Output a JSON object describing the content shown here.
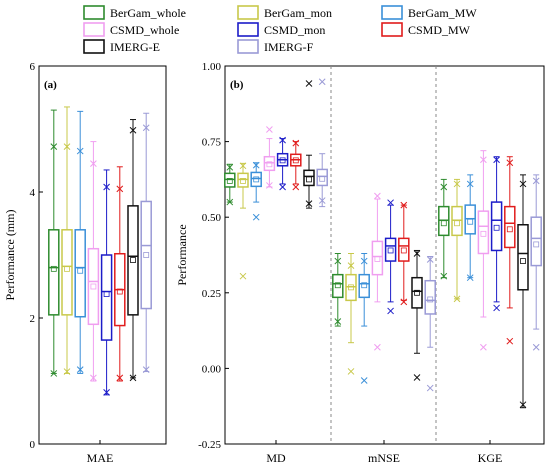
{
  "legend": [
    {
      "name": "BerGam_whole",
      "color": "#2e8b2e"
    },
    {
      "name": "BerGam_mon",
      "color": "#c8c84a"
    },
    {
      "name": "BerGam_MW",
      "color": "#3a8fd8"
    },
    {
      "name": "CSMD_whole",
      "color": "#f09ef0"
    },
    {
      "name": "CSMD_mon",
      "color": "#1c1cc8"
    },
    {
      "name": "CSMD_MW",
      "color": "#e01c1c"
    },
    {
      "name": "IMERG-E",
      "color": "#111111"
    },
    {
      "name": "IMERG-F",
      "color": "#9a9ad6"
    }
  ],
  "chart_data": [
    {
      "type": "box",
      "panel_label": "(a)",
      "ylabel": "Performance (mm)",
      "ylim": [
        0,
        6
      ],
      "yticks": [
        0,
        2,
        4,
        6
      ],
      "categories": [
        "MAE"
      ],
      "groups": [
        {
          "category": "MAE",
          "boxes": [
            {
              "series": "BerGam_whole",
              "wlo": 1.12,
              "q1": 2.05,
              "median": 2.8,
              "q3": 3.4,
              "whi": 5.3,
              "mean": 2.78,
              "xmin": 1.12,
              "xmax": 4.72
            },
            {
              "series": "BerGam_mon",
              "wlo": 1.12,
              "q1": 2.05,
              "median": 2.82,
              "q3": 3.4,
              "whi": 5.35,
              "mean": 2.78,
              "xmin": 1.15,
              "xmax": 4.72
            },
            {
              "series": "BerGam_MW",
              "wlo": 1.12,
              "q1": 2.02,
              "median": 2.8,
              "q3": 3.4,
              "whi": 5.28,
              "mean": 2.75,
              "xmin": 1.18,
              "xmax": 4.65
            },
            {
              "series": "CSMD_whole",
              "wlo": 1.0,
              "q1": 1.9,
              "median": 2.58,
              "q3": 3.1,
              "whi": 4.8,
              "mean": 2.5,
              "xmin": 1.05,
              "xmax": 4.45
            },
            {
              "series": "CSMD_mon",
              "wlo": 0.78,
              "q1": 1.65,
              "median": 2.42,
              "q3": 3.0,
              "whi": 4.35,
              "mean": 2.38,
              "xmin": 0.82,
              "xmax": 4.08
            },
            {
              "series": "CSMD_MW",
              "wlo": 1.0,
              "q1": 1.88,
              "median": 2.45,
              "q3": 3.02,
              "whi": 4.4,
              "mean": 2.42,
              "xmin": 1.05,
              "xmax": 4.05
            },
            {
              "series": "IMERG-E",
              "wlo": 1.05,
              "q1": 2.05,
              "median": 2.98,
              "q3": 3.78,
              "whi": 5.15,
              "mean": 2.92,
              "xmin": 1.05,
              "xmax": 4.98
            },
            {
              "series": "IMERG-F",
              "wlo": 1.15,
              "q1": 2.15,
              "median": 3.15,
              "q3": 3.85,
              "whi": 5.25,
              "mean": 3.0,
              "xmin": 1.18,
              "xmax": 5.02
            }
          ]
        }
      ]
    },
    {
      "type": "box",
      "panel_label": "(b)",
      "ylabel": "Performance",
      "ylim": [
        -0.25,
        1.0
      ],
      "yticks": [
        "-0.25",
        "0.00",
        "0.25",
        "0.50",
        "0.75",
        "1.00"
      ],
      "categories": [
        "MD",
        "mNSE",
        "KGE"
      ],
      "groups": [
        {
          "category": "MD",
          "boxes": [
            {
              "series": "BerGam_whole",
              "wlo": 0.55,
              "q1": 0.6,
              "median": 0.625,
              "q3": 0.645,
              "whi": 0.675,
              "mean": 0.62,
              "xmin": 0.55,
              "xmax": 0.665
            },
            {
              "series": "BerGam_mon",
              "wlo": 0.53,
              "q1": 0.6,
              "median": 0.625,
              "q3": 0.645,
              "whi": 0.678,
              "mean": 0.62,
              "xmin": 0.305,
              "xmax": 0.67
            },
            {
              "series": "BerGam_MW",
              "wlo": 0.55,
              "q1": 0.602,
              "median": 0.628,
              "q3": 0.648,
              "whi": 0.68,
              "mean": 0.625,
              "xmin": 0.5,
              "xmax": 0.672
            },
            {
              "series": "CSMD_whole",
              "wlo": 0.6,
              "q1": 0.655,
              "median": 0.68,
              "q3": 0.7,
              "whi": 0.76,
              "mean": 0.675,
              "xmin": 0.605,
              "xmax": 0.79
            },
            {
              "series": "CSMD_mon",
              "wlo": 0.61,
              "q1": 0.67,
              "median": 0.69,
              "q3": 0.71,
              "whi": 0.76,
              "mean": 0.688,
              "xmin": 0.6,
              "xmax": 0.755
            },
            {
              "series": "CSMD_MW",
              "wlo": 0.61,
              "q1": 0.67,
              "median": 0.69,
              "q3": 0.708,
              "whi": 0.75,
              "mean": 0.688,
              "xmin": 0.6,
              "xmax": 0.745
            },
            {
              "series": "IMERG-E",
              "wlo": 0.53,
              "q1": 0.605,
              "median": 0.635,
              "q3": 0.655,
              "whi": 0.705,
              "mean": 0.625,
              "xmin": 0.545,
              "xmax": 0.942
            },
            {
              "series": "IMERG-F",
              "wlo": 0.535,
              "q1": 0.605,
              "median": 0.635,
              "q3": 0.658,
              "whi": 0.71,
              "mean": 0.627,
              "xmin": 0.555,
              "xmax": 0.948
            }
          ]
        },
        {
          "category": "mNSE",
          "boxes": [
            {
              "series": "BerGam_whole",
              "wlo": 0.14,
              "q1": 0.235,
              "median": 0.28,
              "q3": 0.31,
              "whi": 0.38,
              "mean": 0.275,
              "xmin": 0.155,
              "xmax": 0.355
            },
            {
              "series": "BerGam_mon",
              "wlo": 0.085,
              "q1": 0.225,
              "median": 0.27,
              "q3": 0.31,
              "whi": 0.38,
              "mean": 0.268,
              "xmin": -0.01,
              "xmax": 0.34
            },
            {
              "series": "BerGam_MW",
              "wlo": 0.14,
              "q1": 0.235,
              "median": 0.28,
              "q3": 0.31,
              "whi": 0.38,
              "mean": 0.275,
              "xmin": -0.04,
              "xmax": 0.355
            },
            {
              "series": "CSMD_whole",
              "wlo": 0.22,
              "q1": 0.31,
              "median": 0.37,
              "q3": 0.42,
              "whi": 0.56,
              "mean": 0.362,
              "xmin": 0.07,
              "xmax": 0.57
            },
            {
              "series": "CSMD_mon",
              "wlo": 0.22,
              "q1": 0.355,
              "median": 0.405,
              "q3": 0.43,
              "whi": 0.54,
              "mean": 0.39,
              "xmin": 0.19,
              "xmax": 0.548
            },
            {
              "series": "CSMD_MW",
              "wlo": 0.225,
              "q1": 0.355,
              "median": 0.405,
              "q3": 0.43,
              "whi": 0.54,
              "mean": 0.39,
              "xmin": 0.22,
              "xmax": 0.54
            },
            {
              "series": "IMERG-E",
              "wlo": 0.05,
              "q1": 0.2,
              "median": 0.255,
              "q3": 0.3,
              "whi": 0.39,
              "mean": 0.25,
              "xmin": -0.03,
              "xmax": 0.38
            },
            {
              "series": "IMERG-F",
              "wlo": 0.07,
              "q1": 0.18,
              "median": 0.225,
              "q3": 0.29,
              "whi": 0.37,
              "mean": 0.228,
              "xmin": -0.065,
              "xmax": 0.36
            }
          ]
        },
        {
          "category": "KGE",
          "boxes": [
            {
              "series": "BerGam_whole",
              "wlo": 0.3,
              "q1": 0.44,
              "median": 0.49,
              "q3": 0.535,
              "whi": 0.625,
              "mean": 0.48,
              "xmin": 0.305,
              "xmax": 0.6
            },
            {
              "series": "BerGam_mon",
              "wlo": 0.23,
              "q1": 0.44,
              "median": 0.49,
              "q3": 0.535,
              "whi": 0.625,
              "mean": 0.48,
              "xmin": 0.23,
              "xmax": 0.61
            },
            {
              "series": "BerGam_MW",
              "wlo": 0.3,
              "q1": 0.445,
              "median": 0.495,
              "q3": 0.54,
              "whi": 0.64,
              "mean": 0.485,
              "xmin": 0.3,
              "xmax": 0.61
            },
            {
              "series": "CSMD_whole",
              "wlo": 0.17,
              "q1": 0.38,
              "median": 0.47,
              "q3": 0.52,
              "whi": 0.72,
              "mean": 0.445,
              "xmin": 0.07,
              "xmax": 0.69
            },
            {
              "series": "CSMD_mon",
              "wlo": 0.22,
              "q1": 0.39,
              "median": 0.49,
              "q3": 0.55,
              "whi": 0.7,
              "mean": 0.465,
              "xmin": 0.2,
              "xmax": 0.69
            },
            {
              "series": "CSMD_MW",
              "wlo": 0.2,
              "q1": 0.4,
              "median": 0.48,
              "q3": 0.535,
              "whi": 0.7,
              "mean": 0.46,
              "xmin": 0.09,
              "xmax": 0.68
            },
            {
              "series": "IMERG-E",
              "wlo": -0.13,
              "q1": 0.26,
              "median": 0.38,
              "q3": 0.475,
              "whi": 0.64,
              "mean": 0.355,
              "xmin": -0.12,
              "xmax": 0.61
            },
            {
              "series": "IMERG-F",
              "wlo": 0.13,
              "q1": 0.34,
              "median": 0.43,
              "q3": 0.5,
              "whi": 0.64,
              "mean": 0.41,
              "xmin": 0.07,
              "xmax": 0.62
            }
          ]
        }
      ]
    }
  ]
}
